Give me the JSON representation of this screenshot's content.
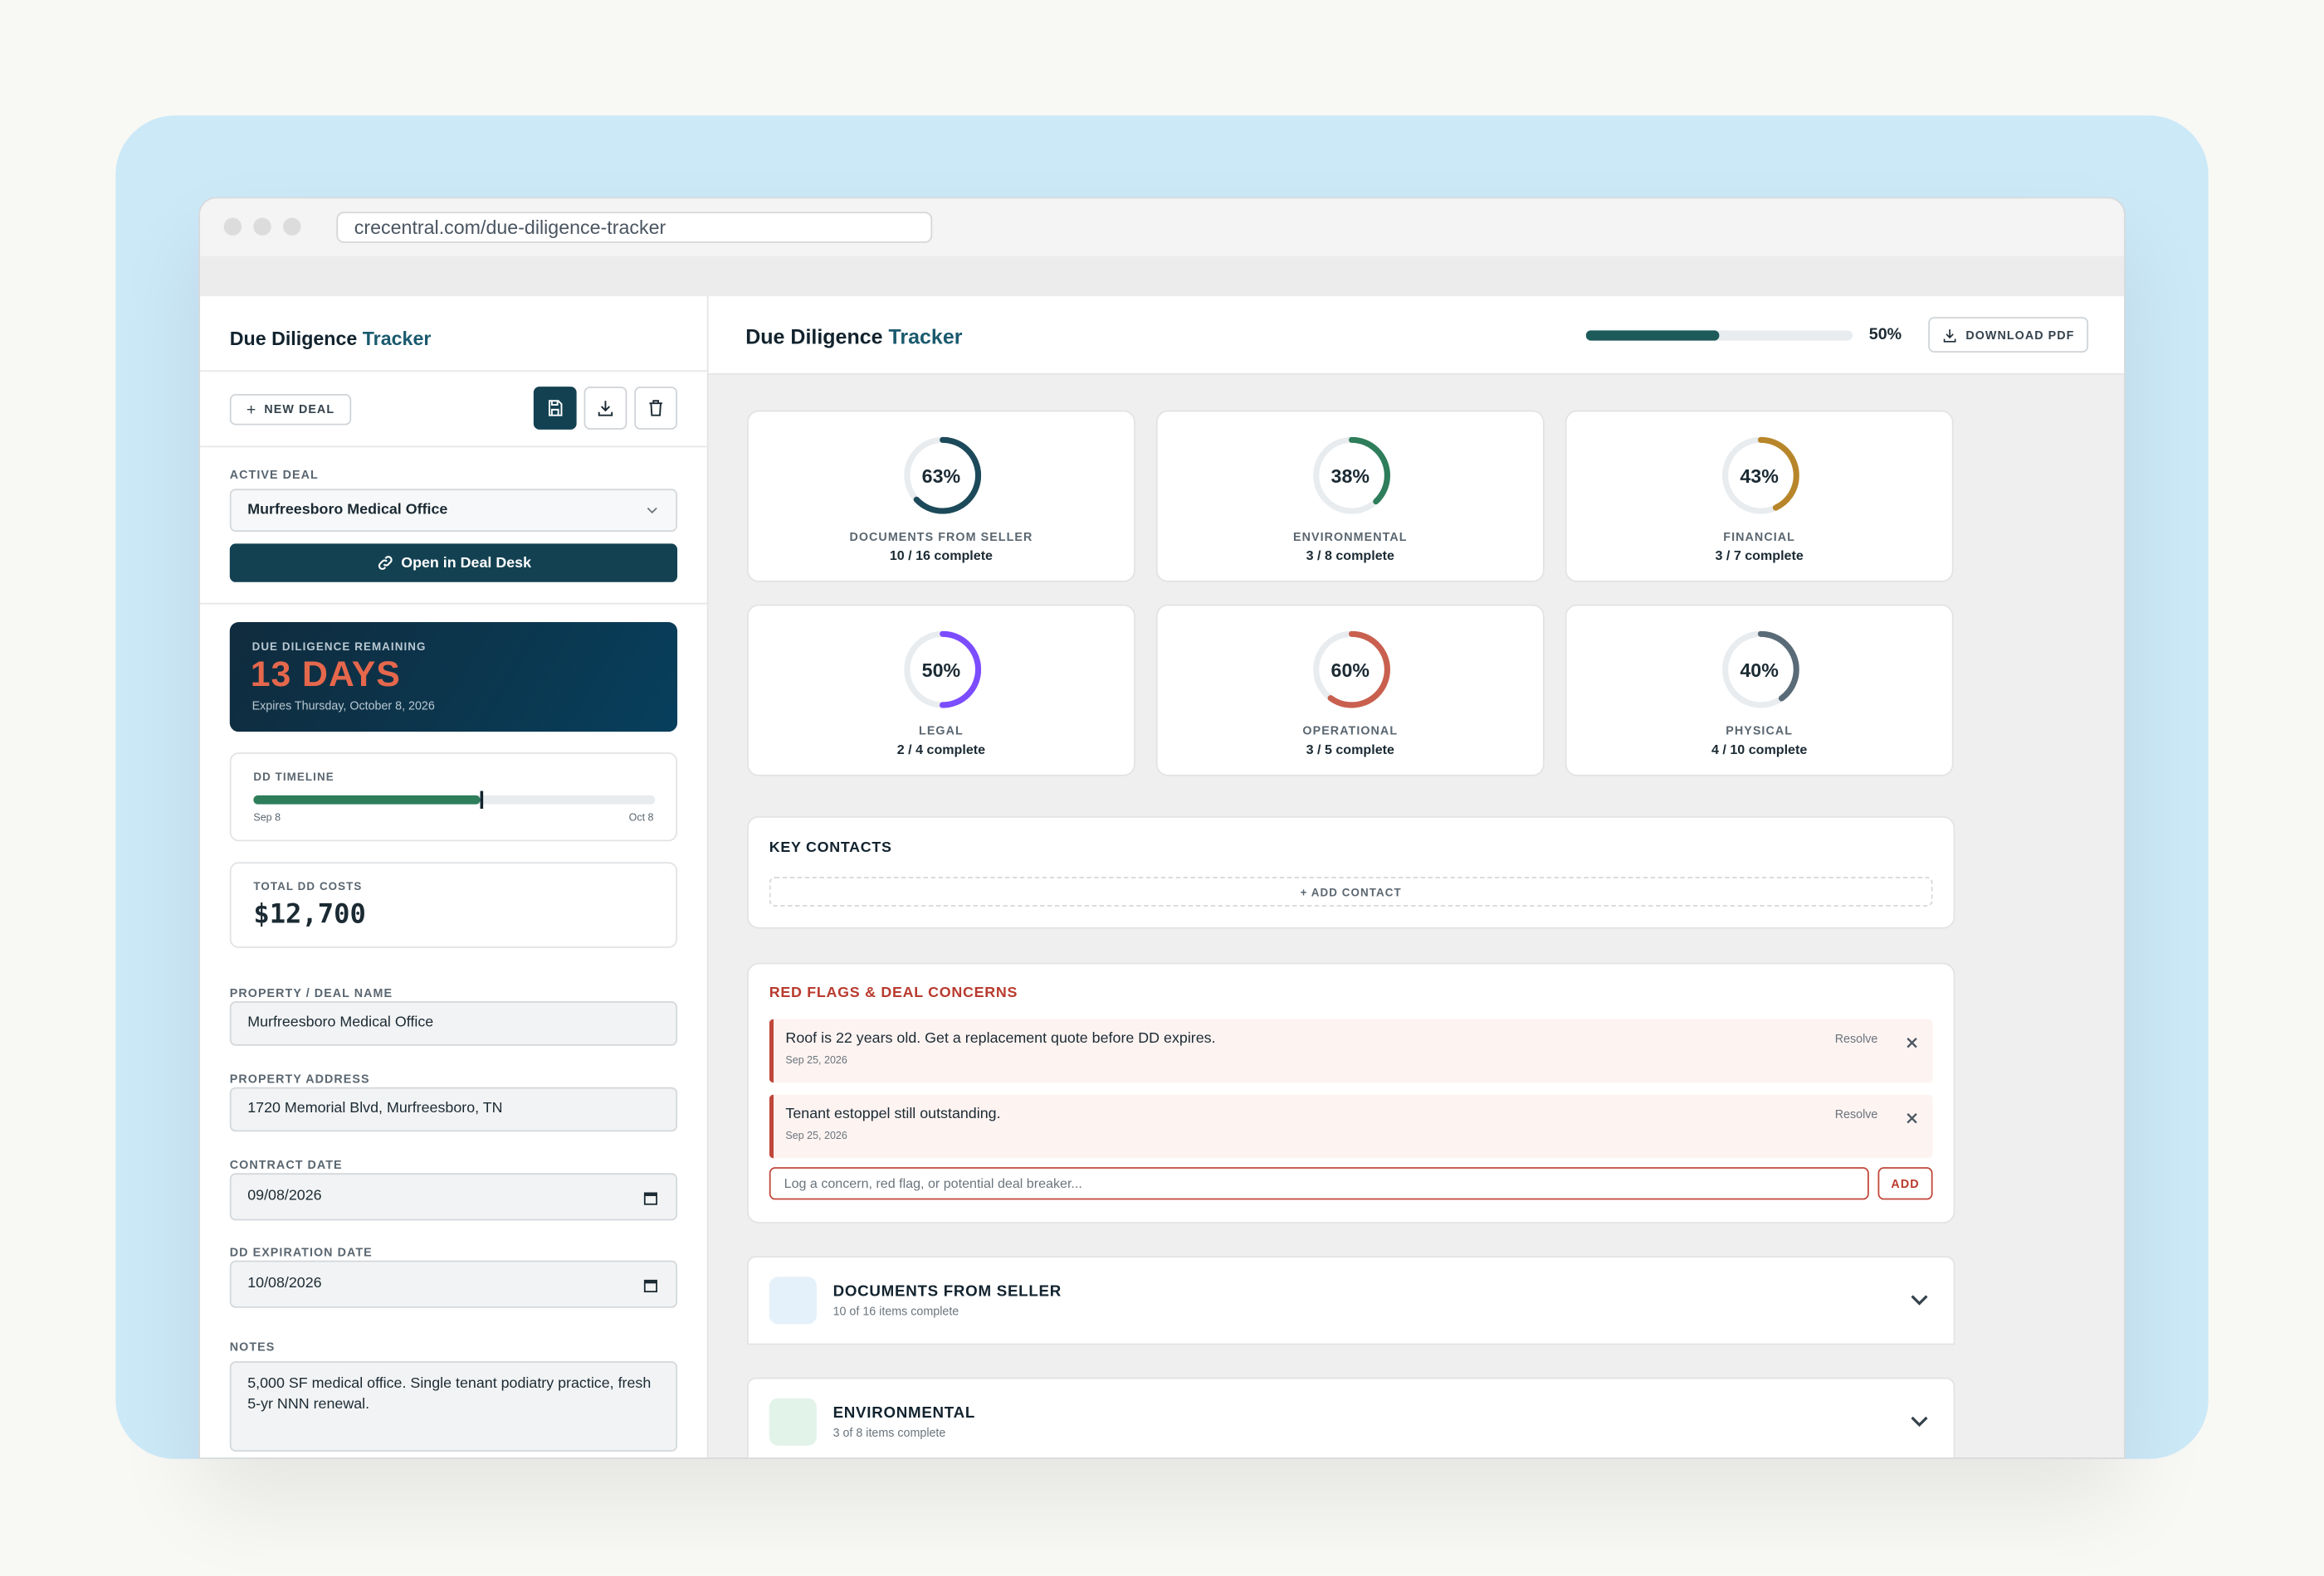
{
  "browser": {
    "url": "crecentral.com/due-diligence-tracker"
  },
  "sidebar": {
    "title_a": "Due Diligence",
    "title_b": "Tracker",
    "new_deal": "NEW DEAL",
    "active_deal_label": "ACTIVE DEAL",
    "active_deal": "Murfreesboro Medical Office",
    "open_button": "Open in Deal Desk",
    "countdown": {
      "label": "DUE DILIGENCE REMAINING",
      "days": "13 DAYS",
      "expires": "Expires Thursday, October 8, 2026"
    },
    "timeline": {
      "label": "DD TIMELINE",
      "start": "Sep 8",
      "end": "Oct 8"
    },
    "costs": {
      "label": "TOTAL DD COSTS",
      "value": "$12,700"
    },
    "fields": [
      {
        "label": "PROPERTY / DEAL NAME",
        "value": "Murfreesboro Medical Office"
      },
      {
        "label": "PROPERTY ADDRESS",
        "value": "1720 Memorial Blvd, Murfreesboro, TN"
      },
      {
        "label": "CONTRACT DATE",
        "value": "09/08/2026"
      },
      {
        "label": "DD EXPIRATION DATE",
        "value": "10/08/2026"
      }
    ],
    "notes": {
      "label": "NOTES",
      "value": "5,000 SF medical office. Single tenant podiatry practice, fresh 5-yr NNN renewal."
    }
  },
  "header": {
    "title_a": "Due Diligence",
    "title_b": "Tracker",
    "progress": {
      "value": 50,
      "label": "50%"
    },
    "download": "DOWNLOAD PDF"
  },
  "categories": [
    {
      "name": "DOCUMENTS FROM SELLER",
      "pct": {
        "value": 63,
        "label": "63%"
      },
      "count": "10 / 16 complete",
      "color": "#1d4a5a"
    },
    {
      "name": "ENVIRONMENTAL",
      "pct": {
        "value": 38,
        "label": "38%"
      },
      "count": "3 / 8 complete",
      "color": "#2e7d5b"
    },
    {
      "name": "FINANCIAL",
      "pct": {
        "value": 43,
        "label": "43%"
      },
      "count": "3 / 7 complete",
      "color": "#b8862a"
    },
    {
      "name": "LEGAL",
      "pct": {
        "value": 50,
        "label": "50%"
      },
      "count": "2 / 4 complete",
      "color": "#7c4dff"
    },
    {
      "name": "OPERATIONAL",
      "pct": {
        "value": 60,
        "label": "60%"
      },
      "count": "3 / 5 complete",
      "color": "#c9604f"
    },
    {
      "name": "PHYSICAL",
      "pct": {
        "value": 40,
        "label": "40%"
      },
      "count": "4 / 10 complete",
      "color": "#5a6b78"
    }
  ],
  "contacts": {
    "title": "KEY CONTACTS",
    "add": "+ ADD CONTACT"
  },
  "red_flags": {
    "title": "RED FLAGS & DEAL CONCERNS",
    "items": [
      {
        "text": "Roof is 22 years old. Get a replacement quote before DD expires.",
        "date": "Sep 25, 2026",
        "resolve": "Resolve"
      },
      {
        "text": "Tenant estoppel still outstanding.",
        "date": "Sep 25, 2026",
        "resolve": "Resolve"
      }
    ],
    "placeholder": "Log a concern, red flag, or potential deal breaker...",
    "add": "ADD"
  },
  "sections": [
    {
      "title": "DOCUMENTS FROM SELLER",
      "subtitle": "10 of 16 items complete",
      "color": "#e4f1fb"
    },
    {
      "title": "ENVIRONMENTAL",
      "subtitle": "3 of 8 items complete",
      "color": "#e2f3ea"
    }
  ]
}
